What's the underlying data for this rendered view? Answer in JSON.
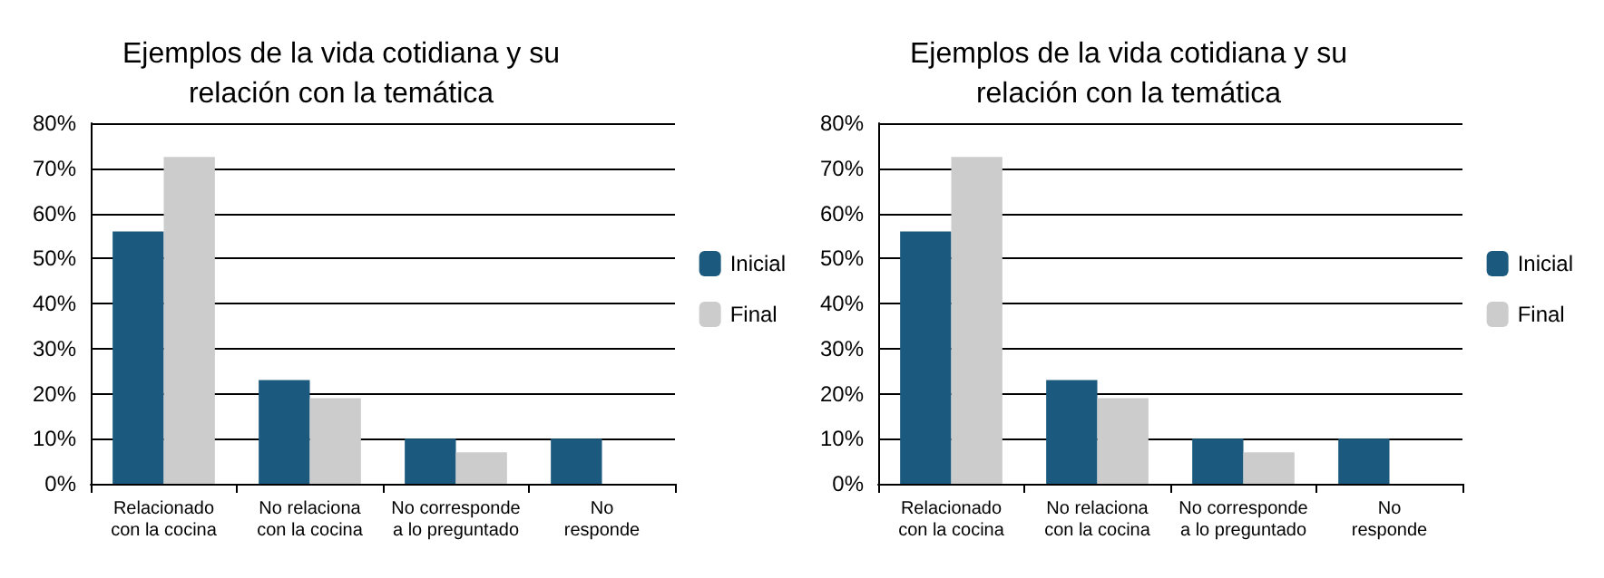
{
  "chart_data": [
    {
      "type": "bar",
      "title": "Ejemplos de la vida cotidiana y su\nrelación con la temática",
      "categories": [
        "Relacionado\ncon la cocina",
        "No relaciona\ncon la cocina",
        "No corresponde\na lo preguntado",
        "No\nresponde"
      ],
      "series": [
        {
          "name": "Inicial",
          "color": "#1b5a7e",
          "values": [
            56,
            23,
            10,
            10
          ]
        },
        {
          "name": "Final",
          "color": "#cccccc",
          "values": [
            72.5,
            19,
            7,
            0
          ]
        }
      ],
      "ylim": [
        0,
        80
      ],
      "yticks": [
        {
          "value": 0,
          "label": "0%"
        },
        {
          "value": 10,
          "label": "10%"
        },
        {
          "value": 20,
          "label": "20%"
        },
        {
          "value": 30,
          "label": "30%"
        },
        {
          "value": 40,
          "label": "40%"
        },
        {
          "value": 50,
          "label": "50%"
        },
        {
          "value": 60,
          "label": "60%"
        },
        {
          "value": 70,
          "label": "70%"
        },
        {
          "value": 80,
          "label": "80%"
        }
      ],
      "grid": "y",
      "legend": "right"
    },
    {
      "type": "bar",
      "title": "Ejemplos de la vida cotidiana y su\nrelación con la temática",
      "categories": [
        "Relacionado\ncon la cocina",
        "No relaciona\ncon la cocina",
        "No corresponde\na lo preguntado",
        "No\nresponde"
      ],
      "series": [
        {
          "name": "Inicial",
          "color": "#1b5a7e",
          "values": [
            56,
            23,
            10,
            10
          ]
        },
        {
          "name": "Final",
          "color": "#cccccc",
          "values": [
            72.5,
            19,
            7,
            0
          ]
        }
      ],
      "ylim": [
        0,
        80
      ],
      "yticks": [
        {
          "value": 0,
          "label": "0%"
        },
        {
          "value": 10,
          "label": "10%"
        },
        {
          "value": 20,
          "label": "20%"
        },
        {
          "value": 30,
          "label": "30%"
        },
        {
          "value": 40,
          "label": "40%"
        },
        {
          "value": 50,
          "label": "50%"
        },
        {
          "value": 60,
          "label": "60%"
        },
        {
          "value": 70,
          "label": "70%"
        },
        {
          "value": 80,
          "label": "80%"
        }
      ],
      "grid": "y",
      "legend": "right"
    }
  ]
}
